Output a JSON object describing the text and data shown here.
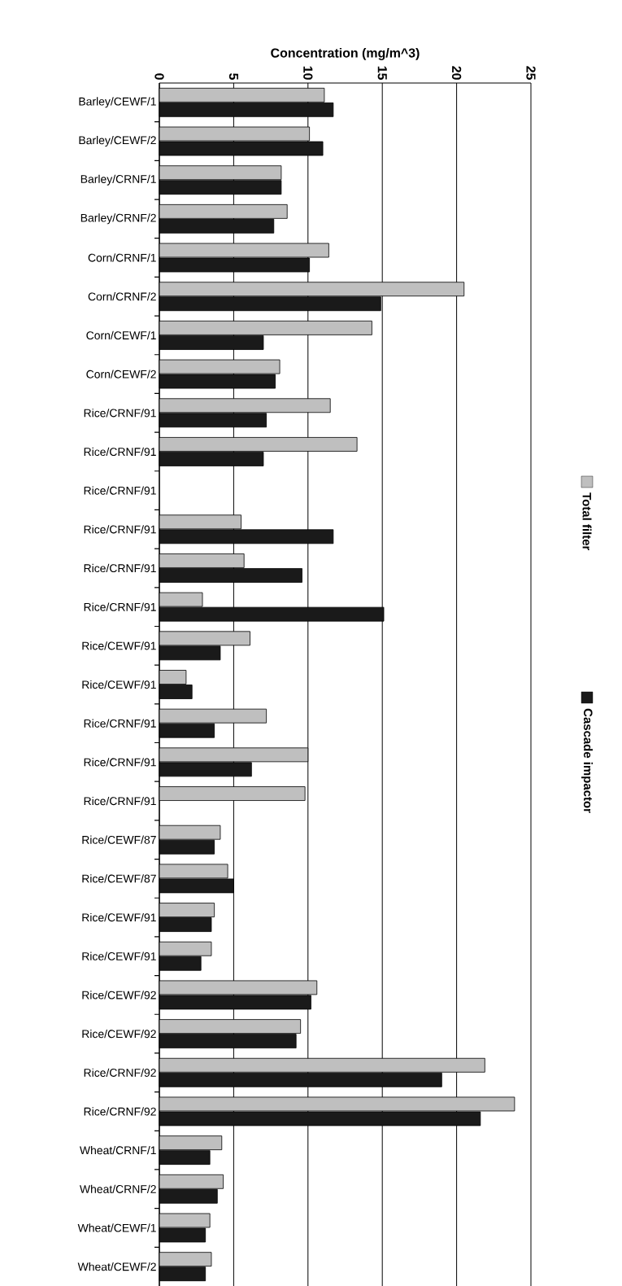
{
  "chart_data": {
    "type": "bar",
    "orientation": "horizontal",
    "xlabel": "Concentration (mg/m^3)",
    "categories": [
      "Barley/CEWF/1",
      "Barley/CEWF/2",
      "Barley/CRNF/1",
      "Barley/CRNF/2",
      "Corn/CRNF/1",
      "Corn/CRNF/2",
      "Corn/CEWF/1",
      "Corn/CEWF/2",
      "Rice/CRNF/91",
      "Rice/CRNF/91",
      "Rice/CRNF/91",
      "Rice/CRNF/91",
      "Rice/CRNF/91",
      "Rice/CRNF/91",
      "Rice/CEWF/91",
      "Rice/CEWF/91",
      "Rice/CRNF/91",
      "Rice/CRNF/91",
      "Rice/CRNF/91",
      "Rice/CEWF/87",
      "Rice/CEWF/87",
      "Rice/CEWF/91",
      "Rice/CEWF/91",
      "Rice/CEWF/92",
      "Rice/CEWF/92",
      "Rice/CRNF/92",
      "Rice/CRNF/92",
      "Wheat/CRNF/1",
      "Wheat/CRNF/2",
      "Wheat/CEWF/1",
      "Wheat/CEWF/2"
    ],
    "series": [
      {
        "name": "Total filter",
        "color": "#bfbfbf",
        "values": [
          11.1,
          10.1,
          8.2,
          8.6,
          11.4,
          20.5,
          14.3,
          8.1,
          11.5,
          13.3,
          null,
          5.5,
          5.7,
          2.9,
          6.1,
          1.8,
          7.2,
          10.0,
          9.8,
          4.1,
          4.6,
          3.7,
          3.5,
          10.6,
          9.5,
          21.9,
          23.9,
          4.2,
          4.3,
          3.4,
          3.5
        ]
      },
      {
        "name": "Cascade impactor",
        "color": "#1a1a1a",
        "values": [
          11.7,
          11.0,
          8.2,
          7.7,
          10.1,
          14.9,
          7.0,
          7.8,
          7.2,
          7.0,
          null,
          11.7,
          9.6,
          15.1,
          4.1,
          2.2,
          3.7,
          6.2,
          null,
          3.7,
          5.0,
          3.5,
          2.8,
          10.2,
          9.2,
          19.0,
          21.6,
          3.4,
          3.9,
          3.1,
          3.1
        ]
      }
    ],
    "xlim": [
      0,
      25
    ],
    "xticks": [
      0,
      5,
      10,
      15,
      20,
      25
    ],
    "grid": "x",
    "legend": "right"
  }
}
